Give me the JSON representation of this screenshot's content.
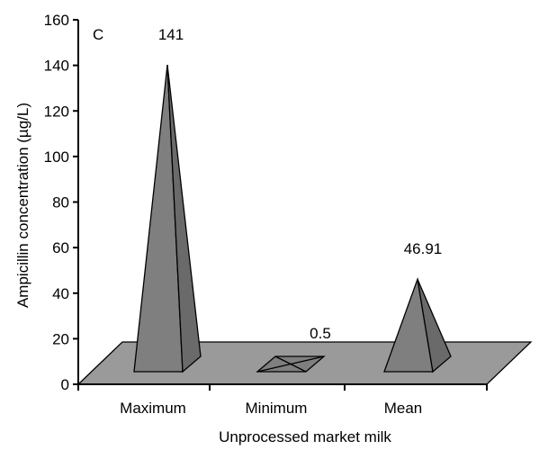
{
  "chart_data": {
    "type": "bar",
    "style": "3d-pyramid",
    "panel_label": "C",
    "title": "",
    "xlabel": "Unprocessed market milk",
    "ylabel": "Ampicillin concentration (µg/L)",
    "categories": [
      "Maximum",
      "Minimum",
      "Mean"
    ],
    "values": [
      141,
      0.5,
      46.91
    ],
    "data_labels": [
      "141",
      "0.5",
      "46.91"
    ],
    "ylim": [
      0,
      160
    ],
    "yticks": [
      0,
      20,
      40,
      60,
      80,
      100,
      120,
      140,
      160
    ],
    "grid": false,
    "legend": "none",
    "colors": {
      "pyramid_left": "#7f7f7f",
      "pyramid_right": "#6a6a6a",
      "floor": "#9a9a9a",
      "stroke": "#000000"
    }
  }
}
